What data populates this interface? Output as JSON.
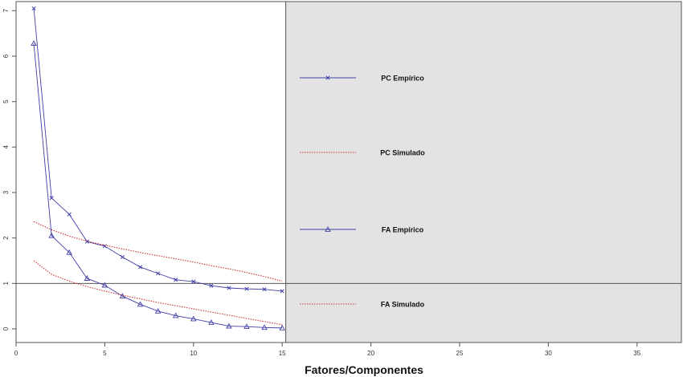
{
  "chart_data": {
    "type": "line",
    "title": "",
    "xlabel": "Fatores/Componentes",
    "ylabel": "",
    "xlim": [
      0,
      37.5
    ],
    "ylim": [
      -0.3,
      7.2
    ],
    "x_ticks": [
      0,
      5,
      10,
      15,
      20,
      25,
      30,
      35
    ],
    "y_ticks": [
      0,
      1,
      2,
      3,
      4,
      5,
      6,
      7
    ],
    "grid": false,
    "reference_line_y": 1,
    "legend_panel_x_start": 15.2,
    "legend_panel_color": "#e3e3e3",
    "legend_placement": "right",
    "series": [
      {
        "name": "PC Empírico",
        "color": "#3f3fa8",
        "line_style": "solid",
        "marker": "x",
        "x": [
          1,
          2,
          3,
          4,
          5,
          6,
          7,
          8,
          9,
          10,
          11,
          12,
          13,
          14,
          15
        ],
        "values": [
          7.05,
          2.88,
          2.52,
          1.92,
          1.82,
          1.58,
          1.36,
          1.22,
          1.08,
          1.04,
          0.95,
          0.9,
          0.88,
          0.87,
          0.83
        ]
      },
      {
        "name": "PC Simulado",
        "color": "#cc3333",
        "line_style": "dotted",
        "marker": "none",
        "x": [
          1,
          2,
          3,
          4,
          5,
          6,
          7,
          8,
          9,
          10,
          11,
          12,
          13,
          14,
          15
        ],
        "values": [
          2.36,
          2.18,
          2.04,
          1.93,
          1.84,
          1.76,
          1.68,
          1.61,
          1.54,
          1.47,
          1.39,
          1.32,
          1.24,
          1.15,
          1.05
        ]
      },
      {
        "name": "FA Empírico",
        "color": "#3f3fa8",
        "line_style": "solid",
        "marker": "triangle",
        "x": [
          1,
          2,
          3,
          4,
          5,
          6,
          7,
          8,
          9,
          10,
          11,
          12,
          13,
          14,
          15
        ],
        "values": [
          6.28,
          2.05,
          1.68,
          1.11,
          0.96,
          0.72,
          0.54,
          0.39,
          0.29,
          0.22,
          0.14,
          0.06,
          0.05,
          0.03,
          0.02
        ]
      },
      {
        "name": "FA Simulado",
        "color": "#cc3333",
        "line_style": "dotted",
        "marker": "none",
        "x": [
          1,
          2,
          3,
          4,
          5,
          6,
          7,
          8,
          9,
          10,
          11,
          12,
          13,
          14,
          15
        ],
        "values": [
          1.5,
          1.2,
          1.05,
          0.93,
          0.83,
          0.74,
          0.66,
          0.58,
          0.51,
          0.44,
          0.37,
          0.3,
          0.23,
          0.16,
          0.09
        ]
      }
    ]
  }
}
